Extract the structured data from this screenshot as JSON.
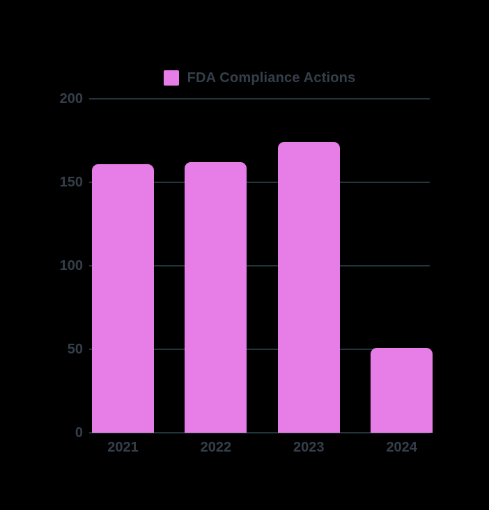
{
  "chart_data": {
    "type": "bar",
    "title": "",
    "categories": [
      "2021",
      "2022",
      "2023",
      "2024"
    ],
    "series": [
      {
        "name": "FDA Compliance Actions",
        "color": "#e77de7",
        "values": [
          161,
          162,
          174,
          51
        ]
      }
    ],
    "xlabel": "",
    "ylabel": "",
    "ylim": [
      0,
      200
    ],
    "yticks": [
      0,
      50,
      100,
      150,
      200
    ],
    "grid": true,
    "legend_position": "top",
    "colors": {
      "background": "#000000",
      "gridline": "#223539",
      "axis_text": "#353f4b",
      "legend_text": "#353f4b"
    }
  }
}
